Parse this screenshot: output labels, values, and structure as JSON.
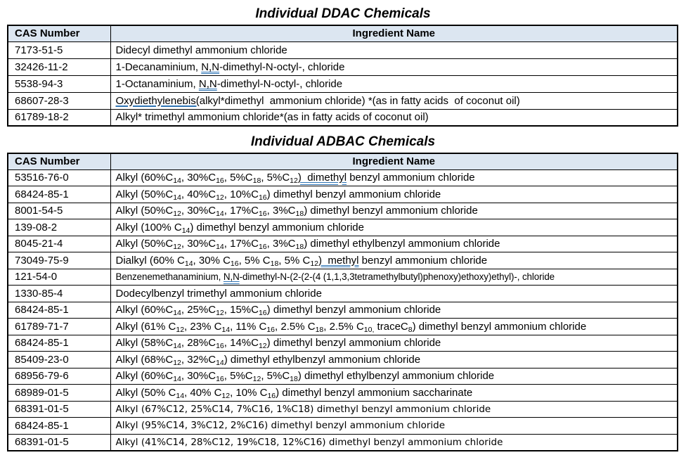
{
  "colors": {
    "header_bg": "#dce6f1",
    "border": "#000000",
    "grammar_underline_blue": "#2e74b5"
  },
  "tables": [
    {
      "title": "Individual DDAC Chemicals",
      "headers": {
        "cas": "CAS Number",
        "ingredient": "Ingredient Name"
      },
      "rows": [
        {
          "cas": "7173-51-5",
          "ingredient": [
            {
              "t": "Didecyl dimethyl ammonium chloride"
            }
          ]
        },
        {
          "cas": "32426-11-2",
          "ingredient": [
            {
              "t": "1-Decanaminium, "
            },
            {
              "t": "N,N",
              "s": "udbl"
            },
            {
              "t": "-dimethyl-N-octyl-, chloride"
            }
          ]
        },
        {
          "cas": "5538-94-3",
          "ingredient": [
            {
              "t": "1-Octanaminium, "
            },
            {
              "t": "N,N",
              "s": "udbl"
            },
            {
              "t": "-dimethyl-N-octyl-, chloride"
            }
          ]
        },
        {
          "cas": "68607-28-3",
          "ingredient": [
            {
              "t": "Oxydiethylenebis(",
              "s": "usgl"
            },
            {
              "t": "alkyl*dimethyl  ammonium chloride) *(as in fatty acids  of coconut oil)"
            }
          ]
        },
        {
          "cas": "61789-18-2",
          "ingredient": [
            {
              "t": "Alkyl* trimethyl ammonium chloride*(as in fatty acids of coconut oil)"
            }
          ]
        }
      ]
    },
    {
      "title": "Individual ADBAC Chemicals",
      "headers": {
        "cas": "CAS Number",
        "ingredient": "Ingredient Name"
      },
      "rows": [
        {
          "cas": "53516-76-0",
          "ingredient": [
            {
              "t": "Alkyl (60%C"
            },
            {
              "t": "14",
              "s": "sub"
            },
            {
              "t": ", 30%C"
            },
            {
              "t": "16",
              "s": "sub"
            },
            {
              "t": ", 5%C"
            },
            {
              "t": "18",
              "s": "sub"
            },
            {
              "t": ", 5%C"
            },
            {
              "t": "12",
              "s": "sub"
            },
            {
              "t": ")  dimethyl",
              "s": "udbl"
            },
            {
              "t": " benzyl ammonium chloride"
            }
          ]
        },
        {
          "cas": "68424-85-1",
          "ingredient": [
            {
              "t": "Alkyl (50%C"
            },
            {
              "t": "14",
              "s": "sub"
            },
            {
              "t": ", 40%C"
            },
            {
              "t": "12",
              "s": "sub"
            },
            {
              "t": ", 10%C"
            },
            {
              "t": "16",
              "s": "sub"
            },
            {
              "t": ") dimethyl benzyl ammonium chloride"
            }
          ]
        },
        {
          "cas": "8001-54-5",
          "ingredient": [
            {
              "t": "Alkyl (50%C"
            },
            {
              "t": "12",
              "s": "sub"
            },
            {
              "t": ", 30%C"
            },
            {
              "t": "14",
              "s": "sub"
            },
            {
              "t": ", 17%C"
            },
            {
              "t": "16",
              "s": "sub"
            },
            {
              "t": ", 3%C"
            },
            {
              "t": "18",
              "s": "sub"
            },
            {
              "t": ") dimethyl benzyl ammonium chloride"
            }
          ]
        },
        {
          "cas": "139-08-2",
          "ingredient": [
            {
              "t": "Alkyl (100% C"
            },
            {
              "t": "14",
              "s": "sub"
            },
            {
              "t": ") dimethyl benzyl ammonium chloride"
            }
          ]
        },
        {
          "cas": "8045-21-4",
          "ingredient": [
            {
              "t": "Alkyl (50%C"
            },
            {
              "t": "12",
              "s": "sub"
            },
            {
              "t": ", 30%C"
            },
            {
              "t": "14",
              "s": "sub"
            },
            {
              "t": ", 17%C"
            },
            {
              "t": "16",
              "s": "sub"
            },
            {
              "t": ", 3%C"
            },
            {
              "t": "18",
              "s": "sub"
            },
            {
              "t": ") dimethyl ethylbenzyl ammonium chloride"
            }
          ]
        },
        {
          "cas": "73049-75-9",
          "ingredient": [
            {
              "t": "Dialkyl (60% C"
            },
            {
              "t": "14",
              "s": "sub"
            },
            {
              "t": ", 30% C"
            },
            {
              "t": "16",
              "s": "sub"
            },
            {
              "t": ", 5% C"
            },
            {
              "t": "18",
              "s": "sub"
            },
            {
              "t": ", 5% C"
            },
            {
              "t": "12",
              "s": "sub"
            },
            {
              "t": ")  methyl",
              "s": "udbl"
            },
            {
              "t": " benzyl ammonium chloride"
            }
          ]
        },
        {
          "cas": "121-54-0",
          "cls": "condensed",
          "ingredient": [
            {
              "t": "Benzenemethanaminium, "
            },
            {
              "t": "N,N",
              "s": "udbl"
            },
            {
              "t": "-dimethyl-N-(2-(2-(4 (1,1,3,3tetramethylbutyl)phenoxy)ethoxy)ethyl)-, chloride"
            }
          ]
        },
        {
          "cas": "1330-85-4",
          "ingredient": [
            {
              "t": "Dodecylbenzyl trimethyl ammonium chloride"
            }
          ]
        },
        {
          "cas": "68424-85-1",
          "ingredient": [
            {
              "t": "Alkyl (60%C"
            },
            {
              "t": "14",
              "s": "sub"
            },
            {
              "t": ", 25%C"
            },
            {
              "t": "12",
              "s": "sub"
            },
            {
              "t": ", 15%C"
            },
            {
              "t": "16",
              "s": "sub"
            },
            {
              "t": ") dimethyl benzyl ammonium chloride"
            }
          ]
        },
        {
          "cas": "61789-71-7",
          "ingredient": [
            {
              "t": "Alkyl (61% C"
            },
            {
              "t": "12",
              "s": "sub"
            },
            {
              "t": ", 23% C"
            },
            {
              "t": "14",
              "s": "sub"
            },
            {
              "t": ", 11% C"
            },
            {
              "t": "16",
              "s": "sub"
            },
            {
              "t": ", 2.5% C"
            },
            {
              "t": "18",
              "s": "sub"
            },
            {
              "t": ", 2.5% C"
            },
            {
              "t": "10,",
              "s": "sub"
            },
            {
              "t": " traceC"
            },
            {
              "t": "8",
              "s": "sub"
            },
            {
              "t": ") dimethyl benzyl ammonium chloride"
            }
          ]
        },
        {
          "cas": "68424-85-1",
          "ingredient": [
            {
              "t": "Alkyl (58%C"
            },
            {
              "t": "14",
              "s": "sub"
            },
            {
              "t": ", 28%C"
            },
            {
              "t": "16",
              "s": "sub"
            },
            {
              "t": ", 14%C"
            },
            {
              "t": "12",
              "s": "sub"
            },
            {
              "t": ") dimethyl benzyl ammonium chloride"
            }
          ]
        },
        {
          "cas": "85409-23-0",
          "ingredient": [
            {
              "t": "Alkyl (68%C"
            },
            {
              "t": "12",
              "s": "sub"
            },
            {
              "t": ", 32%C"
            },
            {
              "t": "14",
              "s": "sub"
            },
            {
              "t": ") dimethyl ethylbenzyl ammonium chloride"
            }
          ]
        },
        {
          "cas": "68956-79-6",
          "ingredient": [
            {
              "t": "Alkyl (60%C"
            },
            {
              "t": "14",
              "s": "sub"
            },
            {
              "t": ", 30%C"
            },
            {
              "t": "16",
              "s": "sub"
            },
            {
              "t": ", 5%C"
            },
            {
              "t": "12",
              "s": "sub"
            },
            {
              "t": ", 5%C"
            },
            {
              "t": "18",
              "s": "sub"
            },
            {
              "t": ") dimethyl ethylbenzyl ammonium chloride"
            }
          ]
        },
        {
          "cas": "68989-01-5",
          "ingredient": [
            {
              "t": "Alkyl (50% C"
            },
            {
              "t": "14",
              "s": "sub"
            },
            {
              "t": ", 40% C"
            },
            {
              "t": "12",
              "s": "sub"
            },
            {
              "t": ", 10% C"
            },
            {
              "t": "16",
              "s": "sub"
            },
            {
              "t": ") dimethyl benzyl ammonium saccharinate"
            }
          ]
        },
        {
          "cas": "68391-01-5",
          "cls": "alt",
          "ingredient": [
            {
              "t": "Alkyl (67%C12, 25%C14, 7%C16, 1%C18) dimethyl benzyl ammonium chloride"
            }
          ]
        },
        {
          "cas": "68424-85-1",
          "cls": "alt",
          "ingredient": [
            {
              "t": "Alkyl (95%C14, 3%C12, 2%C16) dimethyl benzyl ammonium chloride"
            }
          ]
        },
        {
          "cas": "68391-01-5",
          "cls": "alt",
          "ingredient": [
            {
              "t": "Alkyl (41%C14, 28%C12, 19%C18, 12%C16) dimethyl benzyl ammonium chloride"
            }
          ]
        }
      ]
    }
  ]
}
